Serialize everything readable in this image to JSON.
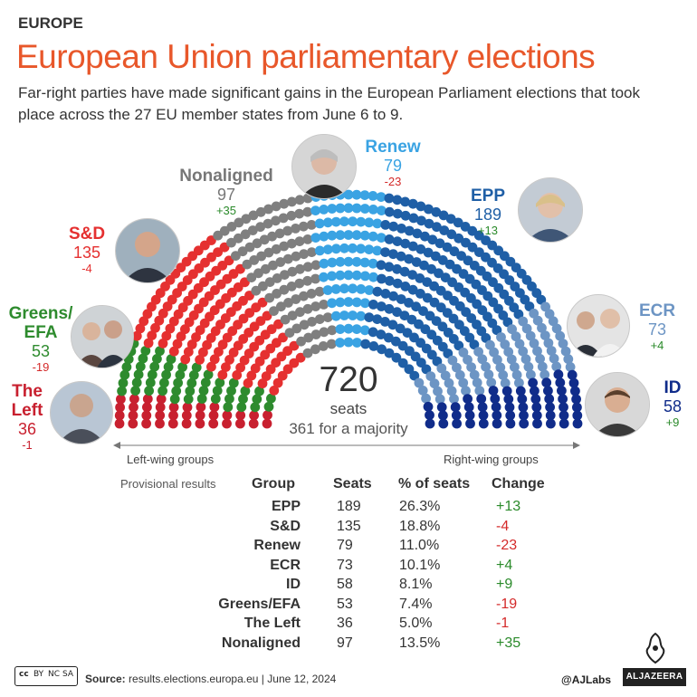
{
  "header": {
    "kicker": "EUROPE",
    "title": "European Union parliamentary elections",
    "subtitle": "Far-right parties have made significant gains in the European Parliament elections that took place across the 27 EU member states from June 6 to 9."
  },
  "colors": {
    "the_left": "#c8202f",
    "greens": "#2e8b2e",
    "sd": "#e53030",
    "nonaligned": "#7f7f7f",
    "renew": "#3aa3e3",
    "epp": "#1f5fa6",
    "ecr": "#6d95c4",
    "id": "#102c8a",
    "title": "#e8572a",
    "positive": "#2a8a2a",
    "negative": "#d42a2a"
  },
  "chart_data": {
    "type": "parliament",
    "total_seats": 720,
    "seats_label": "seats",
    "majority_label": "361 for a majority",
    "left_label": "Left-wing groups",
    "right_label": "Right-wing groups",
    "groups": [
      {
        "key": "the_left",
        "name": "The Left",
        "seats": 36,
        "change": "-1",
        "color": "#c8202f"
      },
      {
        "key": "greens",
        "name": "Greens/ EFA",
        "seats": 53,
        "change": "-19",
        "color": "#2e8b2e"
      },
      {
        "key": "sd",
        "name": "S&D",
        "seats": 135,
        "change": "-4",
        "color": "#e53030"
      },
      {
        "key": "nonaligned",
        "name": "Nonaligned",
        "seats": 97,
        "change": "+35",
        "color": "#7f7f7f"
      },
      {
        "key": "renew",
        "name": "Renew",
        "seats": 79,
        "change": "-23",
        "color": "#3aa3e3"
      },
      {
        "key": "epp",
        "name": "EPP",
        "seats": 189,
        "change": "+13",
        "color": "#1f5fa6"
      },
      {
        "key": "ecr",
        "name": "ECR",
        "seats": 73,
        "change": "+4",
        "color": "#6d95c4"
      },
      {
        "key": "id",
        "name": "ID",
        "seats": 58,
        "change": "+9",
        "color": "#102c8a"
      }
    ]
  },
  "labels": {
    "the_left": {
      "name1": "The",
      "name2": "Left",
      "seats": "36",
      "change": "-1"
    },
    "greens": {
      "name1": "Greens/",
      "name2": "EFA",
      "seats": "53",
      "change": "-19"
    },
    "sd": {
      "name": "S&D",
      "seats": "135",
      "change": "-4"
    },
    "nonaligned": {
      "name": "Nonaligned",
      "seats": "97",
      "change": "+35"
    },
    "renew": {
      "name": "Renew",
      "seats": "79",
      "change": "-23"
    },
    "epp": {
      "name": "EPP",
      "seats": "189",
      "change": "+13"
    },
    "ecr": {
      "name": "ECR",
      "seats": "73",
      "change": "+4"
    },
    "id": {
      "name": "ID",
      "seats": "58",
      "change": "+9"
    }
  },
  "center": {
    "total": "720",
    "seats": "seats",
    "majority": "361 for a majority"
  },
  "table": {
    "caption": "Provisional results",
    "headers": {
      "group": "Group",
      "seats": "Seats",
      "pct": "% of seats",
      "change": "Change"
    },
    "rows": [
      {
        "group": "EPP",
        "seats": "189",
        "pct": "26.3%",
        "change": "+13",
        "dir": "up"
      },
      {
        "group": "S&D",
        "seats": "135",
        "pct": "18.8%",
        "change": "-4",
        "dir": "down"
      },
      {
        "group": "Renew",
        "seats": "79",
        "pct": "11.0%",
        "change": "-23",
        "dir": "down"
      },
      {
        "group": "ECR",
        "seats": "73",
        "pct": "10.1%",
        "change": "+4",
        "dir": "up"
      },
      {
        "group": "ID",
        "seats": "58",
        "pct": "8.1%",
        "change": "+9",
        "dir": "up"
      },
      {
        "group": "Greens/EFA",
        "seats": "53",
        "pct": "7.4%",
        "change": "-19",
        "dir": "down"
      },
      {
        "group": "The Left",
        "seats": "36",
        "pct": "5.0%",
        "change": "-1",
        "dir": "down"
      },
      {
        "group": "Nonaligned",
        "seats": "97",
        "pct": "13.5%",
        "change": "+35",
        "dir": "up"
      }
    ]
  },
  "footer": {
    "source_label": "Source:",
    "source": "results.elections.europa.eu",
    "separator": "|",
    "date": "June 12, 2024",
    "handle": "@AJLabs",
    "logo": "ALJAZEERA",
    "license": {
      "cc": "cc",
      "by": "BY",
      "nc": "NC",
      "sa": "SA"
    }
  }
}
